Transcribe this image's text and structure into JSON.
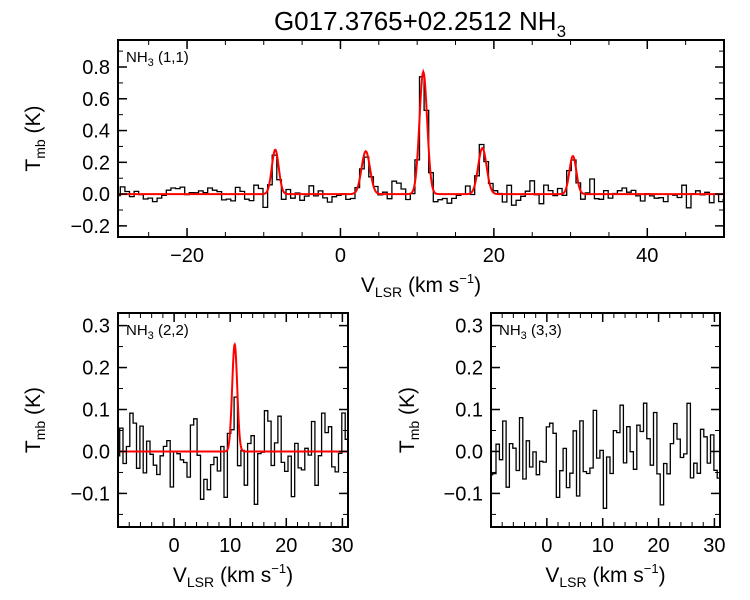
{
  "figure": {
    "title_main": "G017.3765+02.2512 NH",
    "title_sub": "3"
  },
  "chart_data": [
    {
      "type": "line",
      "panel": "top",
      "label_main": "NH",
      "label_sub": "3",
      "label_tail": " (1,1)",
      "xlabel_main": "V",
      "xlabel_sub": "LSR",
      "xlabel_tail": " (km s",
      "xlabel_sup": "−1",
      "xlabel_end": ")",
      "ylabel_main": "T",
      "ylabel_sub": "mb",
      "ylabel_tail": " (K)",
      "xlim": [
        -29,
        50
      ],
      "ylim": [
        -0.27,
        0.97
      ],
      "xticks": [
        -20,
        0,
        20,
        40
      ],
      "xtick_labels": [
        "−20",
        "0",
        "20",
        "40"
      ],
      "xminor": 5,
      "yticks": [
        -0.2,
        0.0,
        0.2,
        0.4,
        0.6,
        0.8
      ],
      "ytick_labels": [
        "−0.2",
        "0.0",
        "0.2",
        "0.4",
        "0.6",
        "0.8"
      ],
      "yminor": 0.1,
      "noise_rms": 0.035,
      "seed": 11,
      "channel_width": 0.6,
      "components": [
        {
          "center": -8.5,
          "amp": 0.28,
          "sigma": 0.45
        },
        {
          "center": 3.3,
          "amp": 0.27,
          "sigma": 0.55
        },
        {
          "center": 10.8,
          "amp": 0.77,
          "sigma": 0.5
        },
        {
          "center": 18.5,
          "amp": 0.29,
          "sigma": 0.55
        },
        {
          "center": 30.3,
          "amp": 0.24,
          "sigma": 0.45
        }
      ],
      "series": [
        {
          "name": "observed spectrum",
          "style": "histogram",
          "color": "#000000"
        },
        {
          "name": "fit",
          "style": "line",
          "color": "#ff0000"
        }
      ]
    },
    {
      "type": "line",
      "panel": "bottom-left",
      "label_main": "NH",
      "label_sub": "3",
      "label_tail": " (2,2)",
      "xlabel_main": "V",
      "xlabel_sub": "LSR",
      "xlabel_tail": " (km s",
      "xlabel_sup": "−1",
      "xlabel_end": ")",
      "ylabel_main": "T",
      "ylabel_sub": "mb",
      "ylabel_tail": " (K)",
      "xlim": [
        -10,
        31
      ],
      "ylim": [
        -0.18,
        0.33
      ],
      "xticks": [
        0,
        10,
        20,
        30
      ],
      "xtick_labels": [
        "0",
        "10",
        "20",
        "30"
      ],
      "xminor": 2,
      "yticks": [
        -0.1,
        0.0,
        0.1,
        0.2,
        0.3
      ],
      "ytick_labels": [
        "−0.1",
        "0.0",
        "0.1",
        "0.2",
        "0.3"
      ],
      "yminor": 0.05,
      "noise_rms": 0.055,
      "seed": 5,
      "channel_width": 0.6,
      "components": [
        {
          "center": 10.8,
          "amp": 0.255,
          "sigma": 0.45
        }
      ],
      "series": [
        {
          "name": "observed spectrum",
          "style": "histogram",
          "color": "#000000"
        },
        {
          "name": "fit",
          "style": "line",
          "color": "#ff0000"
        }
      ]
    },
    {
      "type": "line",
      "panel": "bottom-right",
      "label_main": "NH",
      "label_sub": "3",
      "label_tail": " (3,3)",
      "xlabel_main": "V",
      "xlabel_sub": "LSR",
      "xlabel_tail": " (km s",
      "xlabel_sup": "−1",
      "xlabel_end": ")",
      "ylabel_main": "T",
      "ylabel_sub": "mb",
      "ylabel_tail": " (K)",
      "xlim": [
        -10,
        31
      ],
      "ylim": [
        -0.18,
        0.33
      ],
      "xticks": [
        0,
        10,
        20,
        30
      ],
      "xtick_labels": [
        "0",
        "10",
        "20",
        "30"
      ],
      "xminor": 2,
      "yticks": [
        -0.1,
        0.0,
        0.1,
        0.2,
        0.3
      ],
      "ytick_labels": [
        "−0.1",
        "0.0",
        "0.1",
        "0.2",
        "0.3"
      ],
      "yminor": 0.05,
      "noise_rms": 0.05,
      "seed": 23,
      "channel_width": 0.6,
      "components": [],
      "series": [
        {
          "name": "observed spectrum",
          "style": "histogram",
          "color": "#000000"
        }
      ]
    }
  ]
}
